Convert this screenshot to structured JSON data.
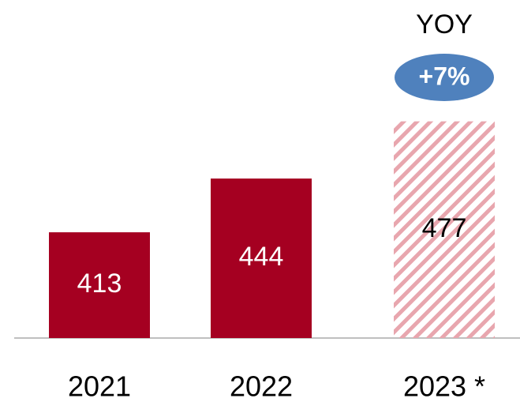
{
  "chart_data": {
    "type": "bar",
    "categories": [
      "2021",
      "2022",
      "2023 *"
    ],
    "values": [
      413,
      444,
      477
    ],
    "color": "#a50021",
    "hatched": [
      false,
      false,
      true
    ],
    "hatch_color": "#e8a6ae",
    "ylim": [
      352,
      547
    ],
    "annotation": {
      "label": "YOY",
      "value": "+7%",
      "color": "#4f81bd"
    }
  }
}
